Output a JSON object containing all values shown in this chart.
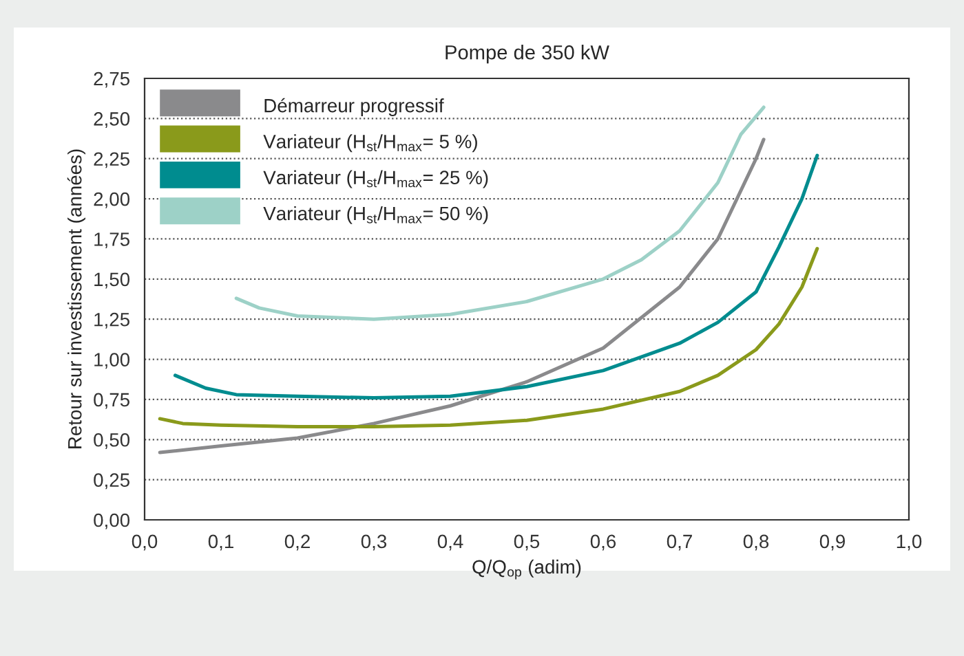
{
  "chart_data": {
    "type": "line",
    "title": "Pompe de 350 kW",
    "xlabel": "Q/Q$_{op}$ (adim)",
    "ylabel": "Retour sur investissement (années)",
    "xlim": [
      0,
      1
    ],
    "ylim": [
      0,
      2.75
    ],
    "xticks": [
      {
        "value": 0,
        "label": "0,0"
      },
      {
        "value": 0.1,
        "label": "0,1"
      },
      {
        "value": 0.2,
        "label": "0,2"
      },
      {
        "value": 0.3,
        "label": "0,3"
      },
      {
        "value": 0.4,
        "label": "0,4"
      },
      {
        "value": 0.5,
        "label": "0,5"
      },
      {
        "value": 0.6,
        "label": "0,6"
      },
      {
        "value": 0.7,
        "label": "0,7"
      },
      {
        "value": 0.8,
        "label": "0,8"
      },
      {
        "value": 0.9,
        "label": "0,9"
      },
      {
        "value": 1,
        "label": "1,0"
      }
    ],
    "yticks": [
      {
        "value": 0,
        "label": "0,00"
      },
      {
        "value": 0.25,
        "label": "0,25"
      },
      {
        "value": 0.5,
        "label": "0,50"
      },
      {
        "value": 0.75,
        "label": "0,75"
      },
      {
        "value": 1,
        "label": "1,00"
      },
      {
        "value": 1.25,
        "label": "1,25"
      },
      {
        "value": 1.5,
        "label": "1,50"
      },
      {
        "value": 1.75,
        "label": "1,75"
      },
      {
        "value": 2,
        "label": "2,00"
      },
      {
        "value": 2.25,
        "label": "2,25"
      },
      {
        "value": 2.5,
        "label": "2,50"
      },
      {
        "value": 2.75,
        "label": "2,75"
      }
    ],
    "grid": "y",
    "legend": "top left",
    "line_style": "solid",
    "marker": "none",
    "series": [
      {
        "name": "Démarreur progressif",
        "color": "#8a8a8c",
        "x": [
          0.02,
          0.1,
          0.2,
          0.3,
          0.4,
          0.5,
          0.6,
          0.7,
          0.75,
          0.8,
          0.81
        ],
        "values": [
          0.42,
          0.46,
          0.51,
          0.6,
          0.71,
          0.86,
          1.07,
          1.45,
          1.75,
          2.25,
          2.37
        ]
      },
      {
        "name": "Variateur (H$_{st}$/H$_{max}$= 5 %)",
        "color": "#8a9a1b",
        "x": [
          0.02,
          0.05,
          0.1,
          0.2,
          0.3,
          0.4,
          0.5,
          0.6,
          0.7,
          0.75,
          0.8,
          0.83,
          0.86,
          0.88
        ],
        "values": [
          0.63,
          0.6,
          0.59,
          0.58,
          0.58,
          0.59,
          0.62,
          0.69,
          0.8,
          0.9,
          1.06,
          1.22,
          1.45,
          1.69
        ]
      },
      {
        "name": "Variateur (H$_{st}$/H$_{max}$= 25 %)",
        "color": "#008c8f",
        "x": [
          0.04,
          0.08,
          0.12,
          0.2,
          0.3,
          0.4,
          0.5,
          0.6,
          0.7,
          0.75,
          0.8,
          0.83,
          0.86,
          0.88
        ],
        "values": [
          0.9,
          0.82,
          0.78,
          0.77,
          0.76,
          0.77,
          0.83,
          0.93,
          1.1,
          1.23,
          1.42,
          1.7,
          2.0,
          2.27
        ]
      },
      {
        "name": "Variateur (H$_{st}$/H$_{max}$= 50 %)",
        "color": "#9dd1c7",
        "x": [
          0.12,
          0.15,
          0.2,
          0.3,
          0.4,
          0.5,
          0.6,
          0.65,
          0.7,
          0.75,
          0.78,
          0.81
        ],
        "values": [
          1.38,
          1.32,
          1.27,
          1.25,
          1.28,
          1.36,
          1.5,
          1.62,
          1.8,
          2.1,
          2.4,
          2.57
        ]
      }
    ]
  }
}
